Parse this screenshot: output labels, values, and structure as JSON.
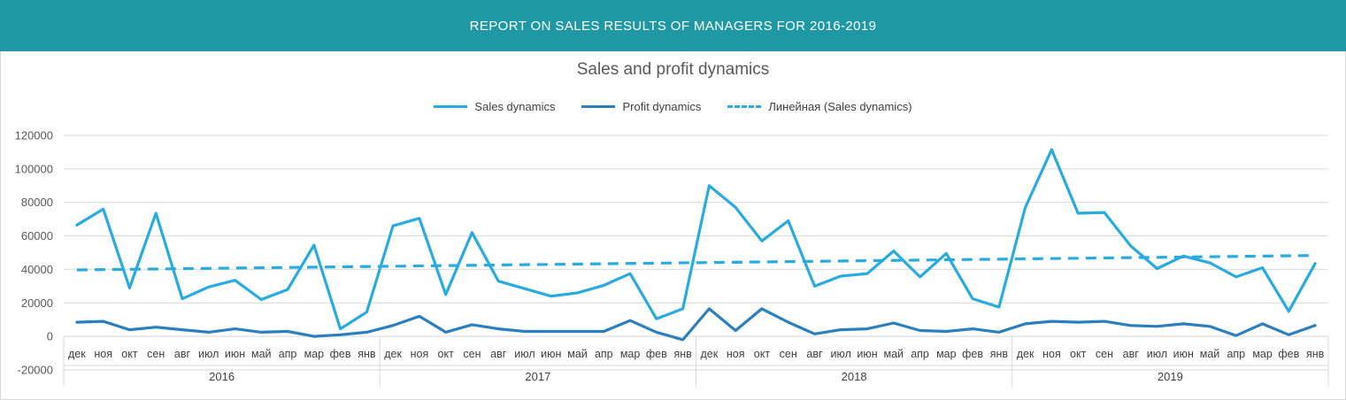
{
  "header": {
    "title": "REPORT ON SALES RESULTS OF MANAGERS FOR 2016-2019"
  },
  "chart_data": {
    "type": "line",
    "title": "Sales and profit dynamics",
    "xlabel": "",
    "ylabel": "",
    "ylim": [
      -20000,
      120000
    ],
    "yticks": [
      "120000",
      "100000",
      "80000",
      "60000",
      "40000",
      "20000",
      "0",
      "-20000"
    ],
    "yticks_values": [
      120000,
      100000,
      80000,
      60000,
      40000,
      20000,
      0,
      -20000
    ],
    "grid": true,
    "legend_position": "top",
    "groups": [
      "2016",
      "2017",
      "2018",
      "2019"
    ],
    "categories": [
      "дек",
      "ноя",
      "окт",
      "сен",
      "авг",
      "июл",
      "июн",
      "май",
      "апр",
      "мар",
      "фев",
      "янв",
      "дек",
      "ноя",
      "окт",
      "сен",
      "авг",
      "июл",
      "июн",
      "май",
      "апр",
      "мар",
      "фев",
      "янв",
      "дек",
      "ноя",
      "окт",
      "сен",
      "авг",
      "июл",
      "июн",
      "май",
      "апр",
      "мар",
      "фев",
      "янв",
      "дек",
      "ноя",
      "окт",
      "сен",
      "авг",
      "июл",
      "июн",
      "май",
      "апр",
      "мар",
      "фев",
      "янв"
    ],
    "series": [
      {
        "name": "Sales dynamics",
        "color": "#29abe2",
        "style": "solid",
        "values": [
          66500,
          76000,
          29000,
          73500,
          22500,
          29500,
          33500,
          22000,
          28000,
          54500,
          4500,
          14500,
          66000,
          70500,
          25000,
          62000,
          33000,
          28500,
          24000,
          26000,
          30500,
          37500,
          10500,
          16500,
          90000,
          77000,
          57000,
          69000,
          30000,
          36000,
          37500,
          51000,
          35500,
          49500,
          22500,
          17500,
          77000,
          111500,
          73500,
          74000,
          54000,
          40500,
          48000,
          44000,
          35500,
          41000,
          15000,
          43500
        ]
      },
      {
        "name": "Profit dynamics",
        "color": "#2b7fbf",
        "style": "solid",
        "values": [
          8500,
          9000,
          4000,
          5500,
          4000,
          2500,
          4500,
          2500,
          3000,
          0,
          1000,
          2500,
          6500,
          12000,
          2500,
          7000,
          4500,
          3000,
          3000,
          3000,
          3000,
          9500,
          2500,
          -2000,
          16500,
          3500,
          16500,
          8500,
          1500,
          4000,
          4500,
          8000,
          3500,
          3000,
          4500,
          2500,
          7500,
          9000,
          8500,
          9000,
          6500,
          6000,
          7500,
          6000,
          500,
          7500,
          1000,
          6500
        ]
      },
      {
        "name": "Линейная (Sales dynamics)",
        "color": "#29abe2",
        "style": "dashed",
        "trendline": {
          "start": 39700,
          "end": 48300
        }
      }
    ]
  }
}
